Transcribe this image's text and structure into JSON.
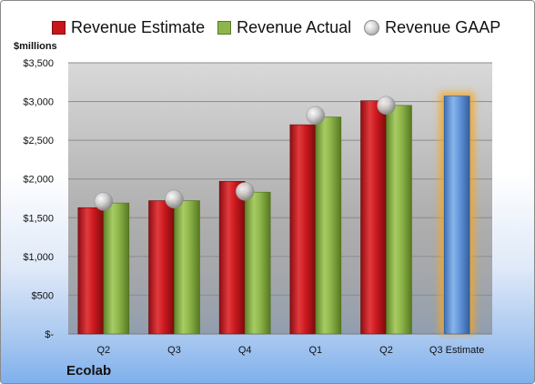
{
  "chart_data": {
    "type": "bar",
    "company": "Ecolab",
    "y_unit_label": "$millions",
    "categories": [
      "Q2",
      "Q3",
      "Q4",
      "Q1",
      "Q2",
      "Q3 Estimate"
    ],
    "series": [
      {
        "name": "Revenue Estimate",
        "values": [
          1630,
          1720,
          1970,
          2700,
          3010,
          null
        ],
        "color": "#c8161b"
      },
      {
        "name": "Revenue Actual",
        "values": [
          1690,
          1720,
          1830,
          2800,
          2950,
          null
        ],
        "color": "#8db54a"
      },
      {
        "name": "Revenue GAAP",
        "values": [
          1710,
          1740,
          1840,
          2820,
          2950,
          null
        ],
        "marker": "sphere",
        "color": "#c9c9c9"
      }
    ],
    "forecast": {
      "category": "Q3 Estimate",
      "value": 3070,
      "color": "#5b8fd6",
      "glow": "#f5a623"
    },
    "ylim": [
      0,
      3500
    ],
    "yticks": [
      0,
      500,
      1000,
      1500,
      2000,
      2500,
      3000,
      3500
    ],
    "ytick_labels": [
      "$-",
      "$500",
      "$1,000",
      "$1,500",
      "$2,000",
      "$2,500",
      "$3,000",
      "$3,500"
    ],
    "grid": true,
    "legend_position": "top"
  }
}
